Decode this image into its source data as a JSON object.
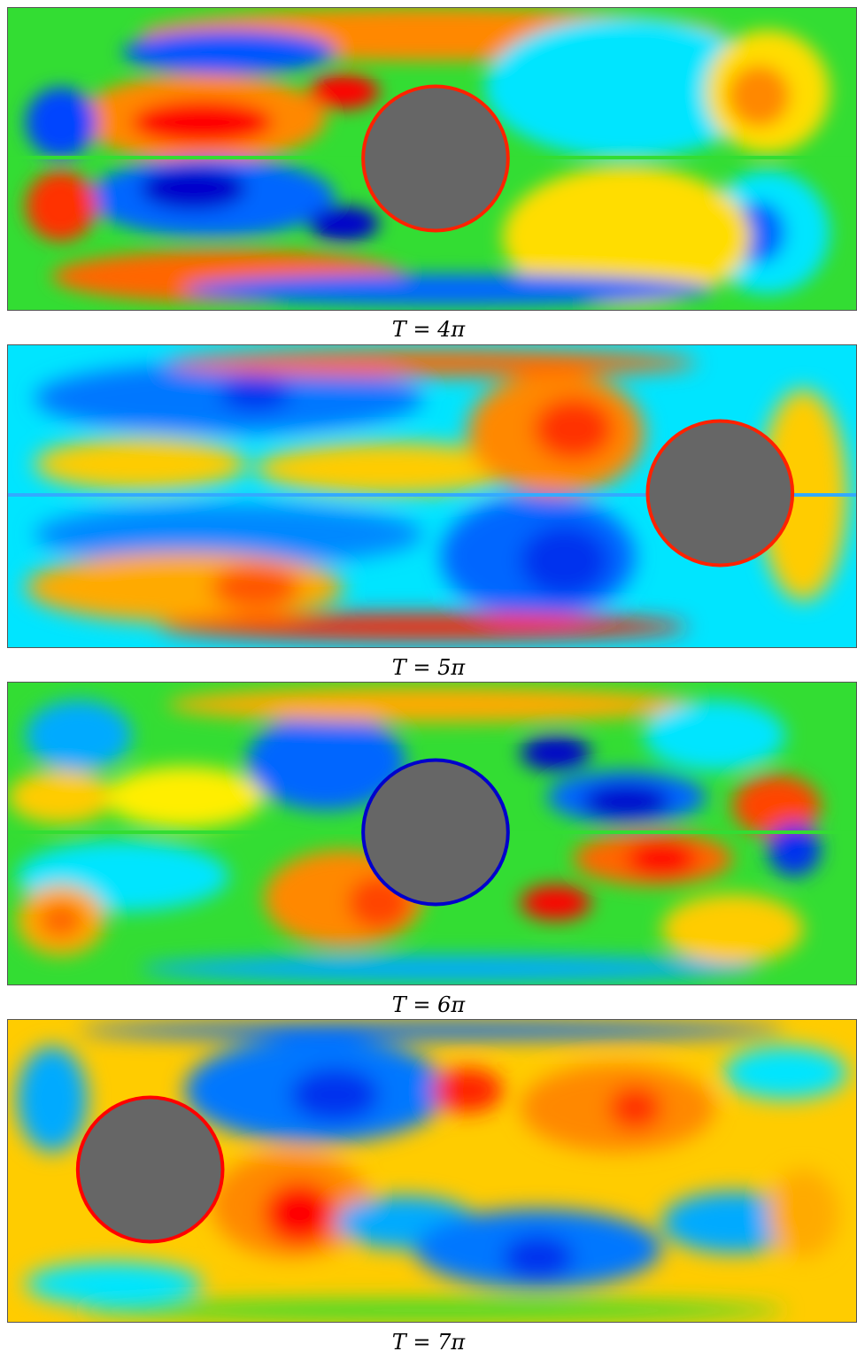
{
  "captions": {
    "t4": "T = 4π",
    "t5": "T = 5π",
    "t6": "T = 6π",
    "t7": "T = 7π"
  },
  "colors": {
    "cylinder": "#666666",
    "red": "#ff0000",
    "orange": "#ff8800",
    "yellow": "#ffdd00",
    "green": "#33dd33",
    "cyan": "#00e5ff",
    "blue": "#0044ff",
    "darkblue": "#0000cc"
  }
}
